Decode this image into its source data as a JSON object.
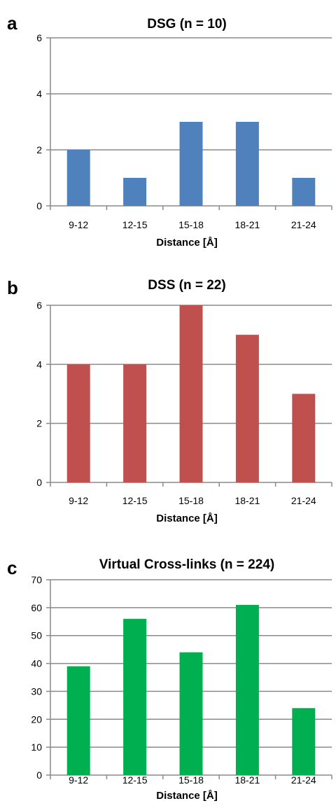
{
  "chart_data": [
    {
      "panel_label": "a",
      "type": "bar",
      "title": "DSG (n = 10)",
      "xlabel": "Distance [Å]",
      "ylabel": "",
      "categories": [
        "9-12",
        "12-15",
        "15-18",
        "18-21",
        "21-24"
      ],
      "values": [
        2,
        1,
        3,
        3,
        1
      ],
      "ylim": [
        0,
        6
      ],
      "yticks": [
        0,
        2,
        4,
        6
      ],
      "grid": true,
      "color": "#4f81bd"
    },
    {
      "panel_label": "b",
      "type": "bar",
      "title": "DSS (n = 22)",
      "xlabel": "Distance [Å]",
      "ylabel": "",
      "categories": [
        "9-12",
        "12-15",
        "15-18",
        "18-21",
        "21-24"
      ],
      "values": [
        4,
        4,
        6,
        5,
        3
      ],
      "ylim": [
        0,
        6
      ],
      "yticks": [
        0,
        2,
        4,
        6
      ],
      "grid": true,
      "color": "#c0504d"
    },
    {
      "panel_label": "c",
      "type": "bar",
      "title": "Virtual Cross-links (n = 224)",
      "xlabel": "Distance [Å]",
      "ylabel": "",
      "categories": [
        "9-12",
        "12-15",
        "15-18",
        "18-21",
        "21-24"
      ],
      "values": [
        39,
        56,
        44,
        61,
        24
      ],
      "ylim": [
        0,
        70
      ],
      "yticks": [
        0,
        10,
        20,
        30,
        40,
        50,
        60,
        70
      ],
      "grid": true,
      "color": "#00b050"
    }
  ]
}
